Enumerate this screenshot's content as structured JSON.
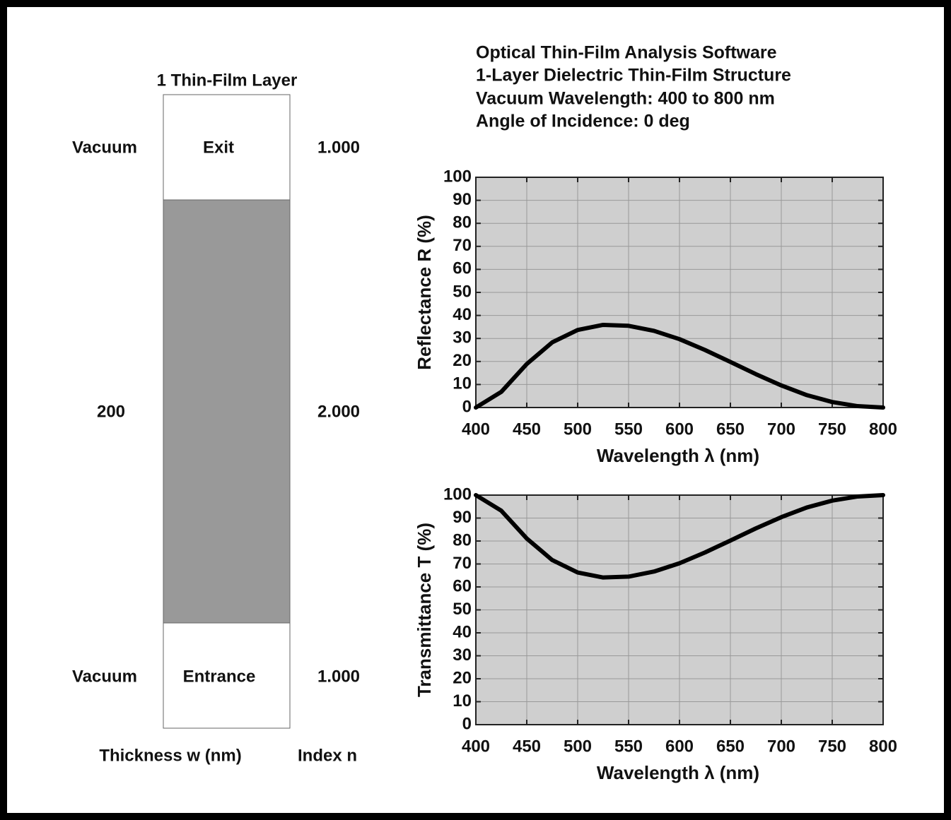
{
  "header": {
    "lines": [
      "Optical Thin-Film Analysis Software",
      "1-Layer Dielectric Thin-Film Structure",
      "Vacuum Wavelength: 400 to 800 nm",
      "Angle of Incidence: 0 deg"
    ]
  },
  "stack": {
    "title": "1 Thin-Film Layer",
    "exit": {
      "medium": "Vacuum",
      "label": "Exit",
      "index": "1.000"
    },
    "layer": {
      "thickness": "200",
      "index": "2.000"
    },
    "entrance": {
      "medium": "Vacuum",
      "label": "Entrance",
      "index": "1.000"
    },
    "thickness_label": "Thickness w (nm)",
    "index_label": "Index n"
  },
  "chart_data": [
    {
      "type": "line",
      "ylabel": "Reflectance R (%)",
      "xlabel": "Wavelength λ (nm)",
      "x": [
        400,
        425,
        450,
        475,
        500,
        525,
        550,
        575,
        600,
        625,
        650,
        675,
        700,
        725,
        750,
        775,
        800
      ],
      "series": [
        {
          "color": "#000000",
          "values": [
            0,
            6.8,
            18.9,
            28.3,
            33.7,
            35.9,
            35.5,
            33.3,
            29.7,
            25.0,
            19.8,
            14.5,
            9.6,
            5.4,
            2.4,
            0.6,
            0
          ]
        }
      ],
      "xlim": [
        400,
        800
      ],
      "ylim": [
        0,
        100
      ],
      "xticks": [
        400,
        450,
        500,
        550,
        600,
        650,
        700,
        750,
        800
      ],
      "yticks": [
        0,
        10,
        20,
        30,
        40,
        50,
        60,
        70,
        80,
        90,
        100
      ],
      "grid": true
    },
    {
      "type": "line",
      "ylabel": "Transmittance T (%)",
      "xlabel": "Wavelength λ (nm)",
      "x": [
        400,
        425,
        450,
        475,
        500,
        525,
        550,
        575,
        600,
        625,
        650,
        675,
        700,
        725,
        750,
        775,
        800
      ],
      "series": [
        {
          "color": "#000000",
          "values": [
            100,
            93.2,
            81.1,
            71.7,
            66.3,
            64.1,
            64.5,
            66.7,
            70.3,
            75.0,
            80.2,
            85.5,
            90.4,
            94.6,
            97.6,
            99.4,
            100
          ]
        }
      ],
      "xlim": [
        400,
        800
      ],
      "ylim": [
        0,
        100
      ],
      "xticks": [
        400,
        450,
        500,
        550,
        600,
        650,
        700,
        750,
        800
      ],
      "yticks": [
        0,
        10,
        20,
        30,
        40,
        50,
        60,
        70,
        80,
        90,
        100
      ],
      "grid": true
    }
  ]
}
